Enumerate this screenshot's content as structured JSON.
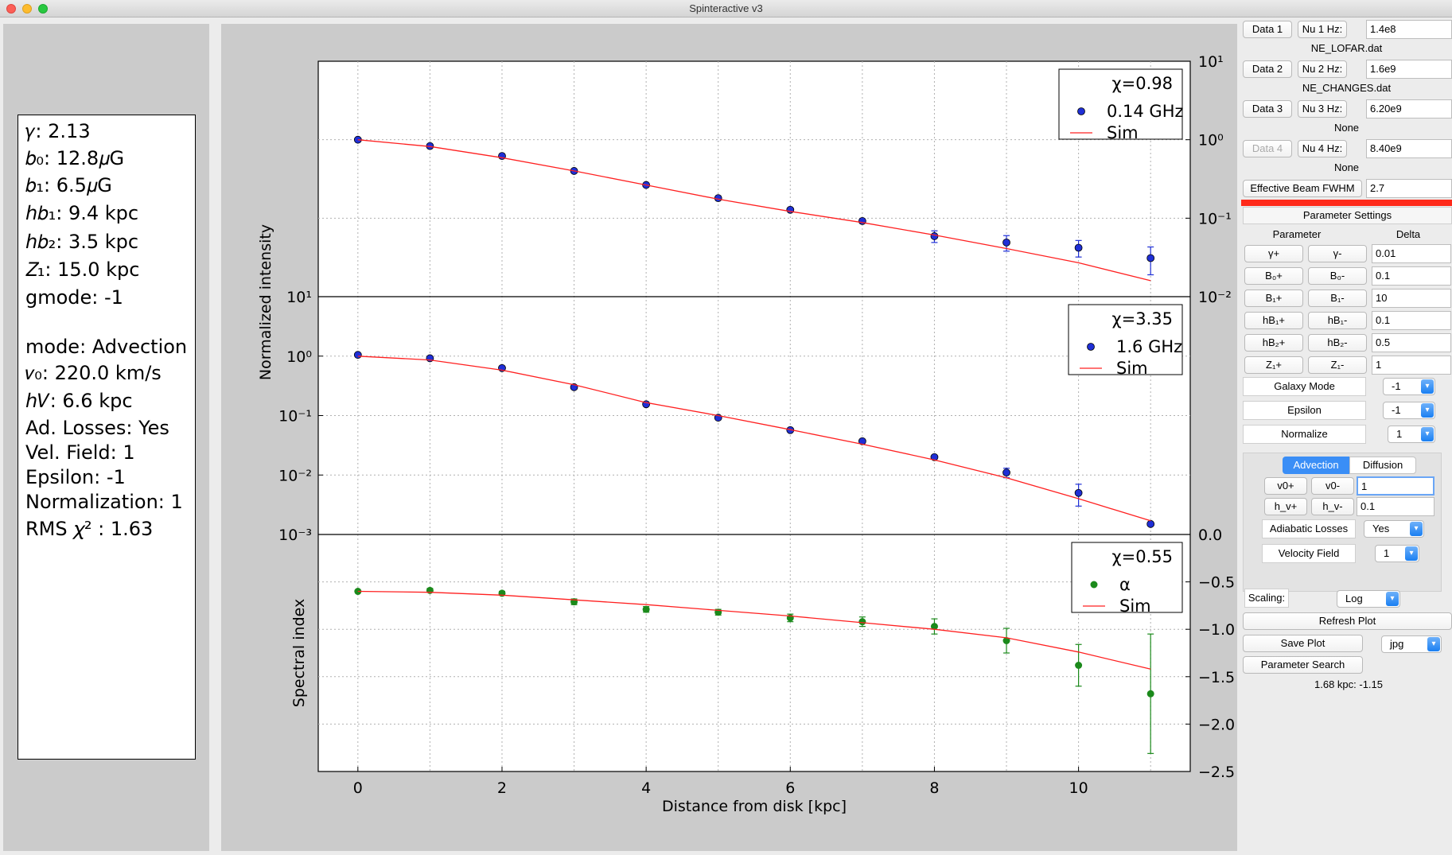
{
  "window": {
    "title": "Spinteractive v3"
  },
  "info": {
    "gamma": "𝛾: 2.13",
    "b0": "𝑏₀: 12.8𝜇G",
    "b1": "𝑏₁: 6.5𝜇G",
    "hb1": "ℎ𝑏₁: 9.4 kpc",
    "hb2": "ℎ𝑏₂: 3.5 kpc",
    "z1": "𝑍₁: 15.0 kpc",
    "gmode": "gmode: -1",
    "mode": "mode: Advection",
    "v0": "𝑣₀: 220.0 km/s",
    "hv": "ℎ𝑉: 6.6 kpc",
    "ad_losses": "Ad. Losses: Yes",
    "vel_field": "Vel. Field: 1",
    "epsilon": "Epsilon: -1",
    "normalization": "Normalization: 1",
    "rms": "RMS 𝜒² : 1.63"
  },
  "right": {
    "data1": "Data 1",
    "nu1_label": "Nu 1 Hz:",
    "nu1_value": "1.4e8",
    "file1": "NE_LOFAR.dat",
    "data2": "Data 2",
    "nu2_label": "Nu 2 Hz:",
    "nu2_value": "1.6e9",
    "file2": "NE_CHANGES.dat",
    "data3": "Data 3",
    "nu3_label": "Nu 3 Hz:",
    "nu3_value": "6.20e9",
    "file3": "None",
    "data4": "Data 4",
    "nu4_label": "Nu 4 Hz:",
    "nu4_value": "8.40e9",
    "file4": "None",
    "beam_label": "Effective Beam FWHM",
    "beam_value": "2.7",
    "param_settings": "Parameter Settings",
    "param_col": "Parameter",
    "delta_col": "Delta",
    "params": [
      {
        "plus": "γ+",
        "minus": "γ-",
        "delta": "0.01"
      },
      {
        "plus": "B₀+",
        "minus": "B₀-",
        "delta": "0.1"
      },
      {
        "plus": "B₁+",
        "minus": "B₁-",
        "delta": "10"
      },
      {
        "plus": "hB₁+",
        "minus": "hB₁-",
        "delta": "0.1"
      },
      {
        "plus": "hB₂+",
        "minus": "hB₂-",
        "delta": "0.5"
      },
      {
        "plus": "Z₁+",
        "minus": "Z₁-",
        "delta": "1"
      }
    ],
    "galaxy_mode_label": "Galaxy Mode",
    "galaxy_mode_value": "-1",
    "epsilon_label": "Epsilon",
    "epsilon_value": "-1",
    "normalize_label": "Normalize",
    "normalize_value": "1",
    "tab_advection": "Advection",
    "tab_diffusion": "Diffusion",
    "v0_plus": "v0+",
    "v0_minus": "v0-",
    "v0_delta": "1",
    "hv_plus": "h_v+",
    "hv_minus": "h_v-",
    "hv_delta": "0.1",
    "adiabatic_label": "Adiabatic Losses",
    "adiabatic_value": "Yes",
    "velocity_label": "Velocity Field",
    "velocity_value": "1",
    "scaling_label": "Scaling:",
    "scaling_value": "Log",
    "refresh": "Refresh Plot",
    "save_plot": "Save Plot",
    "save_format": "jpg",
    "param_search": "Parameter Search",
    "status": "1.68 kpc: -1.15",
    "accent_red": "#ff2a1a",
    "tab_blue": "#3a8ef6"
  },
  "chart_data": [
    {
      "type": "scatter",
      "panel": "top",
      "yscale": "log",
      "ylim": [
        0.01,
        10
      ],
      "xlim": [
        -0.55,
        11.55
      ],
      "legend": [
        "χ=0.98",
        "0.14 GHz",
        "Sim"
      ],
      "series": [
        {
          "name": "0.14 GHz",
          "color": "#1f2fd6",
          "x": [
            0,
            1,
            2,
            3,
            4,
            5,
            6,
            7,
            8,
            9,
            10,
            11
          ],
          "y": [
            1.0,
            0.83,
            0.62,
            0.4,
            0.265,
            0.18,
            0.128,
            0.092,
            0.059,
            0.049,
            0.042,
            0.031
          ],
          "err": [
            0,
            0,
            0,
            0,
            0,
            0,
            0.004,
            0.006,
            0.01,
            0.011,
            0.01,
            0.012
          ]
        },
        {
          "name": "Sim",
          "color": "#ff2020",
          "kind": "line",
          "x": [
            0,
            1,
            2,
            3,
            4,
            5,
            6,
            7,
            8,
            9,
            10,
            11
          ],
          "y": [
            1.0,
            0.82,
            0.59,
            0.4,
            0.265,
            0.175,
            0.122,
            0.088,
            0.061,
            0.041,
            0.027,
            0.016
          ]
        }
      ],
      "ytick_labels": [
        "10¹",
        "10⁰",
        "10⁻¹",
        "10⁻²"
      ],
      "ylabel": "Normalized intensity"
    },
    {
      "type": "scatter",
      "panel": "middle",
      "yscale": "log",
      "ylim": [
        0.001,
        10
      ],
      "xlim": [
        -0.55,
        11.55
      ],
      "legend": [
        "χ=3.35",
        "1.6 GHz",
        "Sim"
      ],
      "series": [
        {
          "name": "1.6 GHz",
          "color": "#1f2fd6",
          "x": [
            0,
            1,
            2,
            3,
            4,
            5,
            6,
            7,
            8,
            9,
            10,
            11
          ],
          "y": [
            1.05,
            0.92,
            0.63,
            0.3,
            0.155,
            0.092,
            0.057,
            0.037,
            0.02,
            0.011,
            0.005,
            0.0015
          ],
          "err": [
            0,
            0,
            0,
            0,
            0,
            0,
            0,
            0,
            0,
            0.002,
            0.002,
            0
          ]
        },
        {
          "name": "Sim",
          "color": "#ff2020",
          "kind": "line",
          "x": [
            0,
            1,
            2,
            3,
            4,
            5,
            6,
            7,
            8,
            9,
            10,
            11
          ],
          "y": [
            1.0,
            0.86,
            0.58,
            0.33,
            0.165,
            0.1,
            0.058,
            0.033,
            0.018,
            0.009,
            0.004,
            0.0017
          ]
        }
      ],
      "ytick_labels": [
        "10¹",
        "10⁰",
        "10⁻¹",
        "10⁻²",
        "10⁻³"
      ]
    },
    {
      "type": "scatter",
      "panel": "bottom",
      "ylim": [
        -2.5,
        0.0
      ],
      "xlim": [
        -0.55,
        11.55
      ],
      "legend": [
        "χ=0.55",
        "α",
        "Sim"
      ],
      "series": [
        {
          "name": "α",
          "color": "#1b8a1b",
          "x": [
            0,
            1,
            2,
            3,
            4,
            5,
            6,
            7,
            8,
            9,
            10,
            11
          ],
          "y": [
            -0.6,
            -0.59,
            -0.62,
            -0.71,
            -0.79,
            -0.82,
            -0.88,
            -0.92,
            -0.97,
            -1.12,
            -1.38,
            -1.68
          ],
          "err": [
            0,
            0.02,
            0.02,
            0.03,
            0.03,
            0.03,
            0.04,
            0.05,
            0.08,
            0.13,
            0.22,
            0.63
          ]
        },
        {
          "name": "Sim",
          "color": "#ff2020",
          "kind": "line",
          "x": [
            0,
            1,
            2,
            3,
            4,
            5,
            6,
            7,
            8,
            9,
            10,
            11
          ],
          "y": [
            -0.6,
            -0.61,
            -0.64,
            -0.69,
            -0.74,
            -0.8,
            -0.86,
            -0.93,
            -1.0,
            -1.09,
            -1.24,
            -1.42
          ]
        }
      ],
      "ytick_labels": [
        "0.0",
        "−0.5",
        "−1.0",
        "−1.5",
        "−2.0",
        "−2.5"
      ],
      "ylabel": "Spectral index"
    }
  ],
  "xlabel": "Distance from disk [kpc]",
  "xtick_labels": [
    "0",
    "2",
    "4",
    "6",
    "8",
    "10"
  ]
}
